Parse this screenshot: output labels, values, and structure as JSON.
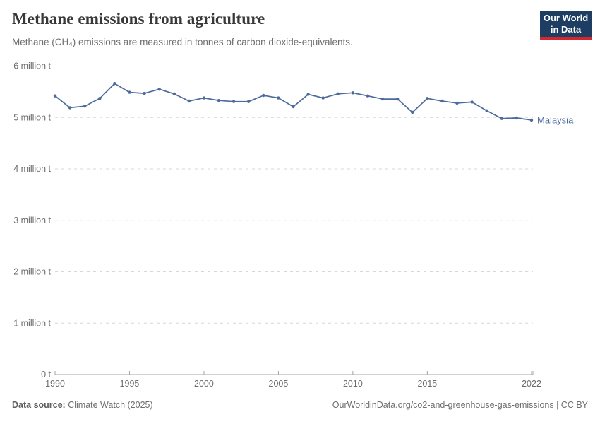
{
  "header": {
    "title": "Methane emissions from agriculture",
    "subtitle": "Methane (CH₄) emissions are measured in tonnes of carbon dioxide-equivalents."
  },
  "logo": {
    "line1": "Our World",
    "line2": "in Data"
  },
  "chart_data": {
    "type": "line",
    "title": "Methane emissions from agriculture",
    "ylabel": "tonnes of carbon dioxide-equivalents",
    "grid": true,
    "ylim": [
      0,
      6000000
    ],
    "values_unit": "million tonnes of CO2-equivalents",
    "x": [
      1990,
      1991,
      1992,
      1993,
      1994,
      1995,
      1996,
      1997,
      1998,
      1999,
      2000,
      2001,
      2002,
      2003,
      2004,
      2005,
      2006,
      2007,
      2008,
      2009,
      2010,
      2011,
      2012,
      2013,
      2014,
      2015,
      2016,
      2017,
      2018,
      2019,
      2020,
      2021,
      2022
    ],
    "series": [
      {
        "name": "Malaysia",
        "values": [
          5.42,
          5.19,
          5.22,
          5.37,
          5.66,
          5.49,
          5.47,
          5.55,
          5.46,
          5.32,
          5.38,
          5.33,
          5.31,
          5.31,
          5.43,
          5.38,
          5.21,
          5.45,
          5.38,
          5.46,
          5.48,
          5.42,
          5.36,
          5.36,
          5.1,
          5.37,
          5.32,
          5.28,
          5.3,
          5.13,
          4.98,
          4.99,
          4.95
        ]
      }
    ],
    "x_ticks": [
      1990,
      1995,
      2000,
      2005,
      2010,
      2015,
      2022
    ],
    "y_ticks": [
      {
        "value": 0,
        "label": "0 t"
      },
      {
        "value": 1,
        "label": "1 million t"
      },
      {
        "value": 2,
        "label": "2 million t"
      },
      {
        "value": 3,
        "label": "3 million t"
      },
      {
        "value": 4,
        "label": "4 million t"
      },
      {
        "value": 5,
        "label": "5 million t"
      },
      {
        "value": 6,
        "label": "6 million t"
      }
    ],
    "legend_position": "end-of-line"
  },
  "colors": {
    "series": "#4C6A9C",
    "grid": "#D7D7D7",
    "axis": "#A5A5A5",
    "tick_text": "#6B6B6B",
    "logo_bg": "#1D3D63",
    "logo_accent": "#D4262E"
  },
  "footer": {
    "source_label": "Data source:",
    "source_value": "Climate Watch (2025)",
    "attribution": "OurWorldinData.org/co2-and-greenhouse-gas-emissions | CC BY"
  }
}
